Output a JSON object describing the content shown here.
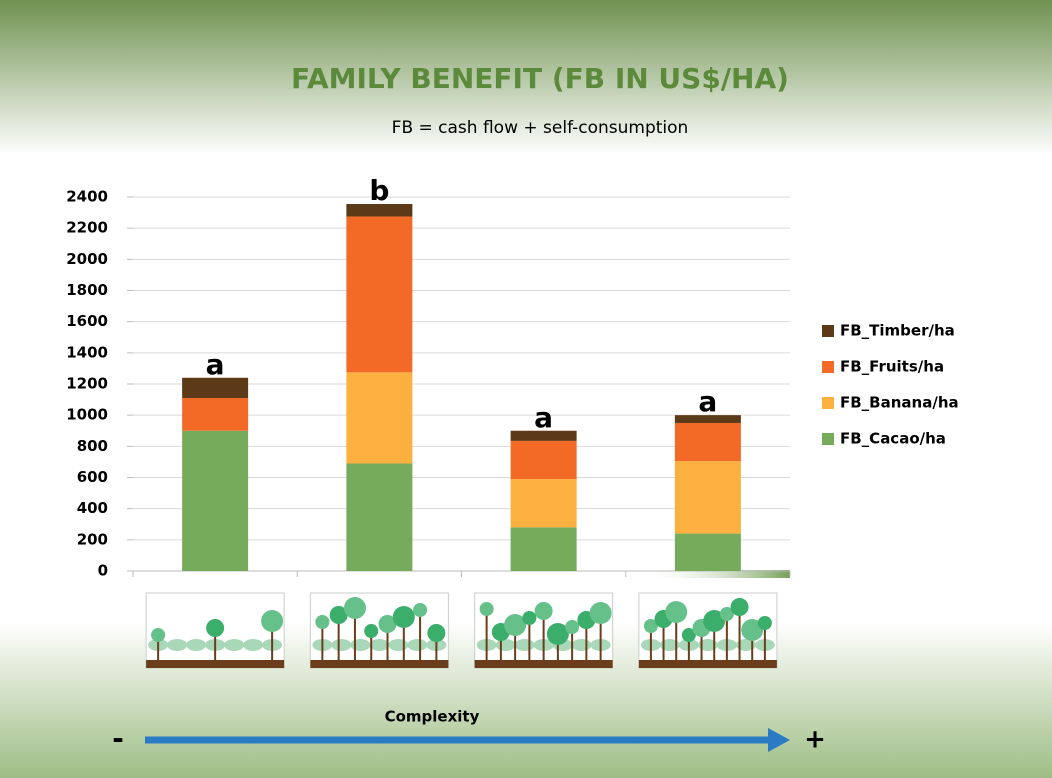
{
  "chart_data": {
    "type": "stacked_bar",
    "title": "FAMILY BENEFIT (FB IN US$/HA)",
    "subtitle": "FB = cash flow + self-consumption",
    "categories": [
      null,
      null,
      null,
      null
    ],
    "series": [
      {
        "name": "FB_Cacao/ha",
        "color": "#77ab5c",
        "values": [
          900,
          690,
          280,
          240
        ]
      },
      {
        "name": "FB_Banana/ha",
        "color": "#fbb040",
        "values": [
          0,
          585,
          310,
          465
        ]
      },
      {
        "name": "FB_Fruits/ha",
        "color": "#f26a26",
        "values": [
          210,
          1000,
          245,
          245
        ]
      },
      {
        "name": "FB_Timber/ha",
        "color": "#5c3a17",
        "values": [
          130,
          80,
          65,
          50
        ]
      }
    ],
    "annotations": [
      "a",
      "b",
      "a",
      "a"
    ],
    "ylim": [
      0,
      2400
    ],
    "yticks": [
      0,
      200,
      400,
      600,
      800,
      1000,
      1200,
      1400,
      1600,
      1800,
      2000,
      2200,
      2400
    ],
    "grid": true,
    "legend": "right",
    "complexity_axis": {
      "label": "Complexity",
      "start": "-",
      "end": "+"
    }
  }
}
